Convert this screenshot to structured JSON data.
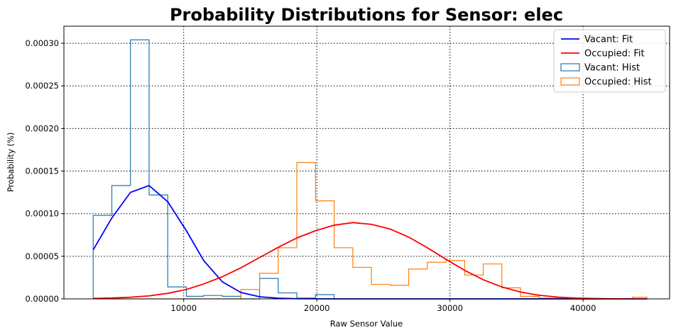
{
  "chart_data": {
    "type": "line",
    "title": "Probability Distributions for Sensor: elec",
    "xlabel": "Raw Sensor Value",
    "ylabel": "Probability (%)",
    "xlim": [
      1000,
      46500
    ],
    "ylim": [
      0,
      0.00032
    ],
    "xticks": [
      10000,
      20000,
      30000,
      40000
    ],
    "xtick_labels": [
      "10000",
      "20000",
      "30000",
      "40000"
    ],
    "yticks": [
      0,
      5e-05,
      0.0001,
      0.00015,
      0.0002,
      0.00025,
      0.0003
    ],
    "ytick_labels": [
      "0.00000",
      "0.00005",
      "0.00010",
      "0.00015",
      "0.00020",
      "0.00025",
      "0.00030"
    ],
    "grid": true,
    "legend_position": "top-right",
    "series": [
      {
        "name": "Vacant: Fit",
        "kind": "line",
        "color": "#0000ff",
        "x": [
          3200,
          4600,
          6000,
          7400,
          8800,
          10200,
          11500,
          12900,
          14300,
          15700,
          17100,
          18500,
          19900,
          21300,
          22700,
          24100,
          25500,
          26900,
          28300,
          29700,
          31100,
          32500,
          33900,
          35300,
          36700,
          38100,
          39500,
          40900,
          42300,
          43700,
          44800
        ],
        "y": [
          5.75e-05,
          9.5e-05,
          0.000125,
          0.000133,
          0.000114,
          8e-05,
          4.5e-05,
          2e-05,
          7.5e-06,
          2.5e-06,
          8e-07,
          2e-07,
          1e-07,
          0,
          0,
          0,
          0,
          0,
          0,
          0,
          0,
          0,
          0,
          0,
          0,
          0,
          0,
          0,
          0,
          0,
          0
        ]
      },
      {
        "name": "Occupied: Fit",
        "kind": "line",
        "color": "#ff0000",
        "x": [
          3200,
          4600,
          6000,
          7400,
          8800,
          10200,
          11500,
          12900,
          14300,
          15700,
          17100,
          18500,
          19900,
          21300,
          22700,
          24100,
          25500,
          26900,
          28300,
          29700,
          31100,
          32500,
          33900,
          35300,
          36700,
          38100,
          39500,
          40900,
          42300,
          43700,
          44800
        ],
        "y": [
          5e-07,
          1e-06,
          2e-06,
          3.5e-06,
          6.5e-06,
          1.1e-05,
          1.75e-05,
          2.6e-05,
          3.65e-05,
          4.85e-05,
          6.05e-05,
          7.15e-05,
          8e-05,
          8.65e-05,
          8.95e-05,
          8.75e-05,
          8.2e-05,
          7.25e-05,
          6e-05,
          4.65e-05,
          3.35e-05,
          2.25e-05,
          1.4e-05,
          8e-06,
          4.3e-06,
          2.1e-06,
          9e-07,
          4e-07,
          1e-07,
          0,
          0
        ]
      },
      {
        "name": "Vacant: Hist",
        "kind": "step_hist",
        "color": "#1f77b4",
        "edges": [
          3200,
          4600,
          6000,
          7400,
          8800,
          10200,
          11500,
          12900,
          14300,
          15700,
          17100,
          18500,
          19900,
          21300,
          22700,
          24100,
          25500,
          26900,
          28300,
          29700,
          31100,
          32500,
          33900,
          35300,
          36700,
          38100,
          39500,
          40900,
          42300,
          43700,
          44800
        ],
        "values": [
          9.8e-05,
          0.000133,
          0.000304,
          0.000122,
          1.4e-05,
          3e-06,
          4e-06,
          3e-06,
          0,
          2.4e-05,
          7e-06,
          1e-06,
          5e-06,
          0,
          0,
          0,
          0,
          0,
          0,
          0,
          0,
          0,
          0,
          0,
          0,
          0,
          0,
          0,
          0,
          0
        ]
      },
      {
        "name": "Occupied: Hist",
        "kind": "step_hist",
        "color": "#ff7f0e",
        "edges": [
          3200,
          4600,
          6000,
          7400,
          8800,
          10200,
          11500,
          12900,
          14300,
          15700,
          17100,
          18500,
          19900,
          21300,
          22700,
          24100,
          25500,
          26900,
          28300,
          29700,
          31100,
          32500,
          33900,
          35300,
          36700,
          38100,
          39500,
          40900,
          42300,
          43700,
          44800
        ],
        "values": [
          0,
          0,
          0,
          0,
          0,
          0,
          0,
          0,
          1.1e-05,
          3e-05,
          6e-05,
          0.00016,
          0.000115,
          6e-05,
          3.7e-05,
          1.7e-05,
          1.6e-05,
          3.5e-05,
          4.3e-05,
          4.5e-05,
          2.8e-05,
          4.1e-05,
          1.3e-05,
          3e-06,
          1e-06,
          1e-06,
          0,
          0,
          0,
          2e-06
        ]
      }
    ]
  }
}
